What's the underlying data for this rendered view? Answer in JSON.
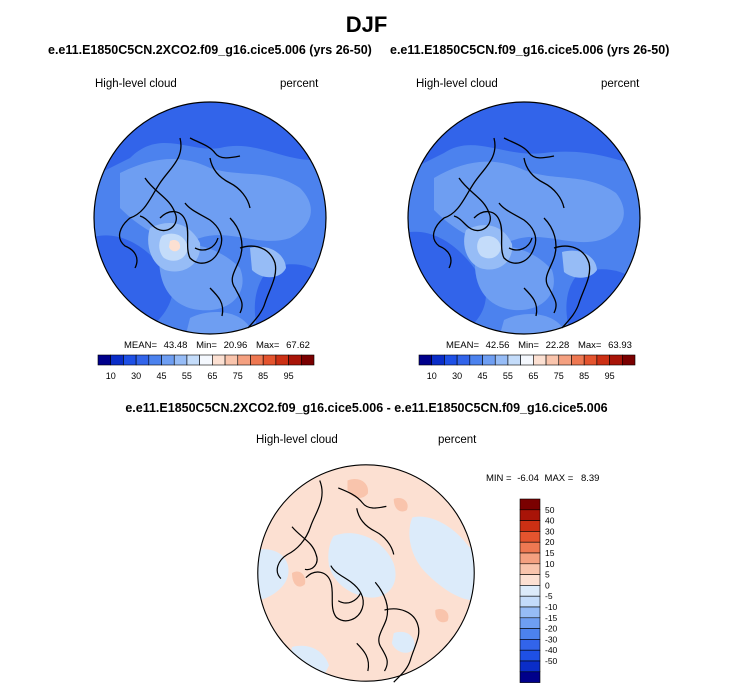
{
  "figure": {
    "season": "DJF",
    "panels": [
      {
        "run_title": "e.e11.E1850C5CN.2XCO2.f09_g16.cice5.006 (yrs 26-50)",
        "variable": "High-level cloud",
        "units": "percent",
        "mean_label": "MEAN=",
        "mean": "43.48",
        "min_label": "Min=",
        "min": "20.96",
        "max_label": "Max=",
        "max": "67.62"
      },
      {
        "run_title": "e.e11.E1850C5CN.f09_g16.cice5.006 (yrs 26-50)",
        "variable": "High-level cloud",
        "units": "percent",
        "mean_label": "MEAN=",
        "mean": "42.56",
        "min_label": "Min=",
        "min": "22.28",
        "max_label": "Max=",
        "max": "63.93"
      }
    ],
    "difference": {
      "title": "e.e11.E1850C5CN.2XCO2.f09_g16.cice5.006 - e.e11.E1850C5CN.f09_g16.cice5.006",
      "variable": "High-level cloud",
      "units": "percent",
      "min_label": "MIN =",
      "min": "-6.04",
      "max_label": "MAX =",
      "max": "8.39"
    }
  },
  "colorbar_abs": {
    "colors": [
      "#00008b",
      "#0a2dc8",
      "#1e50e6",
      "#3264ea",
      "#4c82ee",
      "#6e9ef2",
      "#96bcf6",
      "#c4dcfa",
      "#f4f8fe",
      "#fce0d2",
      "#f9c4ac",
      "#f4a080",
      "#ee7852",
      "#e4542e",
      "#cc3014",
      "#a81408",
      "#7a0000"
    ],
    "tick_labels": [
      "10",
      "30",
      "45",
      "55",
      "65",
      "75",
      "85",
      "95"
    ]
  },
  "colorbar_diff": {
    "colors": [
      "#7a0000",
      "#a81408",
      "#cc3014",
      "#e4542e",
      "#ee7852",
      "#f4a080",
      "#f9c4ac",
      "#fce0d2",
      "#dcebfa",
      "#c4dcfa",
      "#96bcf6",
      "#6e9ef2",
      "#4c82ee",
      "#3264ea",
      "#1e50e6",
      "#0a2dc8",
      "#00008b"
    ],
    "tick_labels": [
      "50",
      "40",
      "30",
      "20",
      "15",
      "10",
      "5",
      "0",
      "-5",
      "-10",
      "-15",
      "-20",
      "-30",
      "-40",
      "-50"
    ]
  },
  "map_colors": {
    "ocean_base": "#4c82ee",
    "darker": "#3264ea",
    "lighter": "#6e9ef2",
    "pale": "#96bcf6",
    "palest": "#c4dcfa",
    "peak": "#fce0d2",
    "diff_base": "#fce0d2",
    "diff_blue": "#dcebfa",
    "diff_warm": "#f9c4ac",
    "coast": "#000000"
  }
}
